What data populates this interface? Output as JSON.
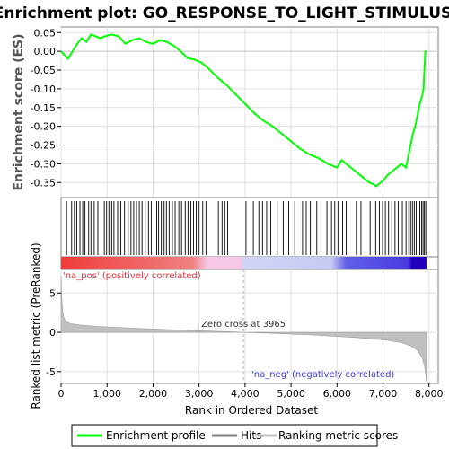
{
  "chart_data": {
    "title": "Enrichment plot: GO_RESPONSE_TO_LIGHT_STIMULUS",
    "top_panel": {
      "type": "line",
      "ylabel": "Enrichment score (ES)",
      "ylim": [
        -0.39,
        0.065
      ],
      "yticks": [
        0.05,
        0.0,
        -0.05,
        -0.1,
        -0.15,
        -0.2,
        -0.25,
        -0.3,
        -0.35
      ],
      "ytick_labels": [
        "0.05",
        "0.00",
        "-0.05",
        "-0.10",
        "-0.15",
        "-0.20",
        "-0.25",
        "-0.30",
        "-0.35"
      ],
      "series": [
        {
          "name": "Enrichment profile",
          "color": "#00ff00",
          "x": [
            0,
            150,
            250,
            350,
            450,
            550,
            650,
            750,
            850,
            950,
            1100,
            1250,
            1400,
            1550,
            1700,
            1850,
            2000,
            2150,
            2300,
            2450,
            2600,
            2750,
            2900,
            3050,
            3200,
            3400,
            3600,
            3800,
            4000,
            4200,
            4400,
            4600,
            4800,
            5000,
            5200,
            5400,
            5600,
            5800,
            5900,
            6000,
            6100,
            6200,
            6300,
            6400,
            6500,
            6600,
            6700,
            6800,
            6850,
            6900,
            7000,
            7100,
            7200,
            7300,
            7400,
            7500,
            7550,
            7600,
            7650,
            7700,
            7750,
            7800,
            7850,
            7880,
            7900,
            7920,
            7940
          ],
          "y": [
            0.0,
            -0.02,
            0.0,
            0.02,
            0.035,
            0.025,
            0.045,
            0.04,
            0.035,
            0.04,
            0.045,
            0.04,
            0.02,
            0.03,
            0.035,
            0.025,
            0.02,
            0.03,
            0.025,
            0.015,
            0.0,
            -0.018,
            -0.022,
            -0.03,
            -0.045,
            -0.07,
            -0.09,
            -0.115,
            -0.14,
            -0.165,
            -0.185,
            -0.2,
            -0.22,
            -0.24,
            -0.26,
            -0.275,
            -0.285,
            -0.3,
            -0.305,
            -0.31,
            -0.29,
            -0.3,
            -0.31,
            -0.32,
            -0.33,
            -0.34,
            -0.35,
            -0.355,
            -0.36,
            -0.355,
            -0.345,
            -0.33,
            -0.32,
            -0.31,
            -0.3,
            -0.31,
            -0.28,
            -0.25,
            -0.22,
            -0.2,
            -0.17,
            -0.14,
            -0.12,
            -0.1,
            -0.05,
            0.0,
            0.002
          ]
        }
      ]
    },
    "hits_panel": {
      "legend": "Hits",
      "hit_positions": [
        120,
        230,
        290,
        340,
        410,
        470,
        520,
        600,
        650,
        720,
        800,
        870,
        940,
        990,
        1040,
        1100,
        1150,
        1230,
        1300,
        1380,
        1460,
        1520,
        1580,
        1640,
        1700,
        1760,
        1830,
        1900,
        1960,
        2020,
        2080,
        2120,
        2180,
        2240,
        2290,
        2350,
        2420,
        2480,
        2560,
        2620,
        2700,
        2760,
        2820,
        2880,
        2940,
        3000,
        3080,
        3150,
        3420,
        3500,
        3560,
        3620,
        4020,
        4130,
        4180,
        4300,
        4380,
        4470,
        4560,
        4700,
        4830,
        4950,
        5080,
        5250,
        5330,
        5420,
        5560,
        5650,
        5780,
        5880,
        5950,
        6020,
        6120,
        6200,
        6420,
        6520,
        6720,
        6840,
        6920,
        6990,
        7050,
        7120,
        7190,
        7260,
        7330,
        7420,
        7500,
        7560,
        7600,
        7640,
        7680,
        7720,
        7760,
        7800,
        7840,
        7870,
        7900,
        7930
      ]
    },
    "bottom_panel": {
      "type": "area",
      "ylabel": "Ranked list metric (PreRanked)",
      "ylim": [
        -6.5,
        8
      ],
      "yticks": [
        5,
        0,
        -5
      ],
      "ytick_labels": [
        "5",
        "0",
        "-5"
      ],
      "series": [
        {
          "name": "Ranking metric scores",
          "color": "#c0c0c0",
          "x": [
            0,
            10,
            30,
            60,
            100,
            200,
            400,
            800,
            1500,
            2500,
            3500,
            3965,
            4500,
            5500,
            6500,
            7000,
            7400,
            7600,
            7750,
            7850,
            7900,
            7930,
            7945
          ],
          "y": [
            7.2,
            5.0,
            2.8,
            1.9,
            1.4,
            1.1,
            0.95,
            0.75,
            0.55,
            0.3,
            0.1,
            0.0,
            -0.1,
            -0.35,
            -0.7,
            -0.95,
            -1.3,
            -1.7,
            -2.3,
            -3.2,
            -4.2,
            -5.5,
            -6.3
          ]
        }
      ],
      "annotations": {
        "pos_label": "'na_pos' (positively correlated)",
        "neg_label": "'na_neg' (negatively correlated)",
        "zero_cross_label": "Zero cross at 3965",
        "zero_cross": 3965
      }
    },
    "xlabel": "Rank in Ordered Dataset",
    "xlim": [
      0,
      8200
    ],
    "xticks": [
      0,
      1000,
      2000,
      3000,
      4000,
      5000,
      6000,
      7000,
      8000
    ],
    "xtick_labels": [
      "0",
      "1,000",
      "2,000",
      "3,000",
      "4,000",
      "5,000",
      "6,000",
      "7,000",
      "8,000"
    ],
    "grid": true,
    "legend": {
      "placement": "bottom",
      "entries": [
        {
          "label": "Enrichment profile",
          "color": "#00ff00"
        },
        {
          "label": "Hits",
          "color": "#7f7f7f"
        },
        {
          "label": "Ranking metric scores",
          "color": "#c0c0c0"
        }
      ]
    },
    "colors": {
      "pos_text": "#e8303a",
      "neg_text": "#3b3bdd",
      "gradient_pos": "#f03c3c",
      "gradient_mid_pos": "#f6c8e6",
      "gradient_mid_neg": "#d2d4f6",
      "gradient_neg": "#1a00cc"
    }
  }
}
